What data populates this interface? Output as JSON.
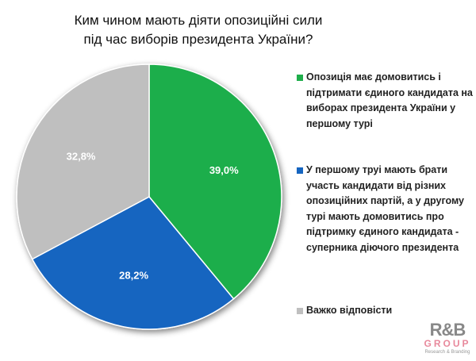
{
  "chart_data": {
    "type": "pie",
    "title": "Ким чином мають діяти опозиційні сили під час виборів президента України?",
    "title_lines": [
      "Ким чином мають діяти опозиційні сили",
      "під час виборів президента України?"
    ],
    "slices": [
      {
        "label": "Опозиція має домовитись і підтримати єдиного кандидата на виборах президента України у першому турі",
        "value": 39.0,
        "display": "39,0%",
        "color": "#1fae4b"
      },
      {
        "label": "У першому труі мають брати участь кандидати від різних опозиційних партій, а у другому турі мають домовитись про підтримку єдиного кандидата - суперника діючого президента",
        "value": 28.2,
        "display": "28,2%",
        "color": "#1565c0"
      },
      {
        "label": "Важко відповісти",
        "value": 32.8,
        "display": "32,8%",
        "color": "#bfbfbf"
      }
    ],
    "legend_position": "right",
    "start_angle": "top, clockwise"
  },
  "logo": {
    "line1": "R&B",
    "line2": "GROUP",
    "line3": "Research & Branding"
  }
}
